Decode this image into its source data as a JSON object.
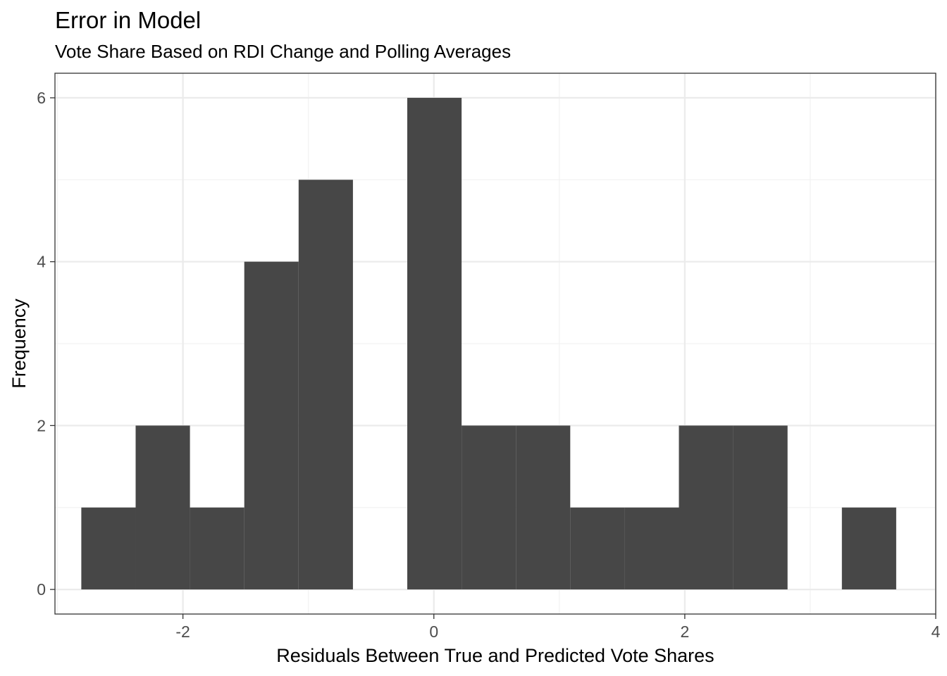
{
  "chart_data": {
    "type": "bar",
    "subtype": "histogram",
    "title": "Error in Model",
    "subtitle": "Vote Share Based on RDI Change and Polling Averages",
    "xlabel": "Residuals Between True and Predicted Vote Shares",
    "ylabel": "Frequency",
    "xlim": [
      -3.02,
      4.0
    ],
    "ylim": [
      -0.3,
      6.3
    ],
    "x_ticks": [
      -2,
      0,
      2,
      4
    ],
    "x_tick_labels": [
      "-2",
      "0",
      "2",
      "4"
    ],
    "y_ticks": [
      0,
      2,
      4,
      6
    ],
    "y_tick_labels": [
      "0",
      "2",
      "4",
      "6"
    ],
    "bin_width": 0.433,
    "bins": [
      {
        "xmin": -2.81,
        "xmax": -2.377,
        "count": 1
      },
      {
        "xmin": -2.377,
        "xmax": -1.944,
        "count": 2
      },
      {
        "xmin": -1.944,
        "xmax": -1.511,
        "count": 1
      },
      {
        "xmin": -1.511,
        "xmax": -1.078,
        "count": 4
      },
      {
        "xmin": -1.078,
        "xmax": -0.645,
        "count": 5
      },
      {
        "xmin": -0.645,
        "xmax": -0.212,
        "count": 0
      },
      {
        "xmin": -0.212,
        "xmax": 0.221,
        "count": 6
      },
      {
        "xmin": 0.221,
        "xmax": 0.654,
        "count": 2
      },
      {
        "xmin": 0.654,
        "xmax": 1.087,
        "count": 2
      },
      {
        "xmin": 1.087,
        "xmax": 1.52,
        "count": 1
      },
      {
        "xmin": 1.52,
        "xmax": 1.953,
        "count": 1
      },
      {
        "xmin": 1.953,
        "xmax": 2.386,
        "count": 2
      },
      {
        "xmin": 2.386,
        "xmax": 2.819,
        "count": 2
      },
      {
        "xmin": 2.819,
        "xmax": 3.252,
        "count": 0
      },
      {
        "xmin": 3.252,
        "xmax": 3.685,
        "count": 1
      }
    ],
    "grid": true,
    "legend": "none",
    "colors": {
      "bar_fill": "#474747",
      "panel_border": "#333333",
      "grid_major": "#ebebeb",
      "grid_minor": "#f2f2f2",
      "tick_text": "#4d4d4d"
    }
  }
}
